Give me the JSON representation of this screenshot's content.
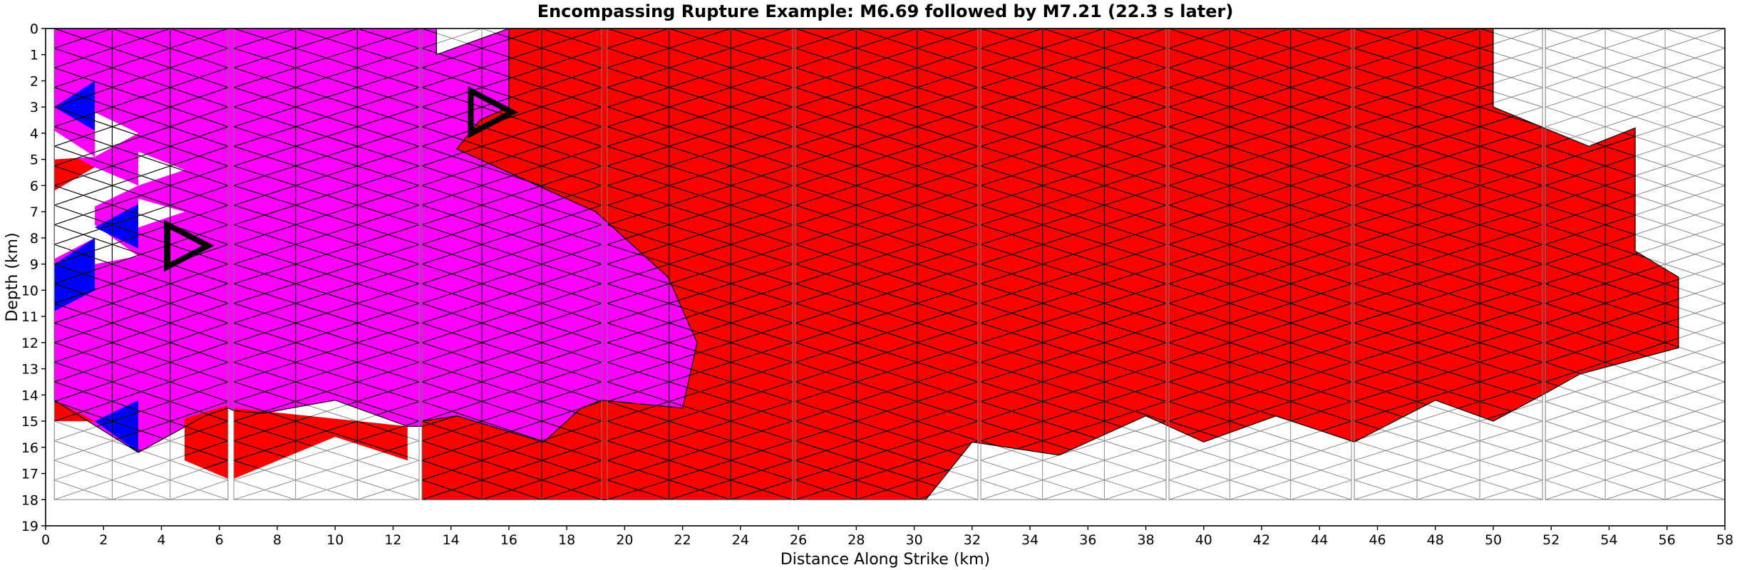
{
  "chart_data": {
    "type": "heatmap",
    "title": "Encompassing Rupture Example: M6.69 followed by M7.21 (22.3 s later)",
    "xlabel": "Distance Along Strike (km)",
    "ylabel": "Depth (km)",
    "xlim": [
      0,
      58
    ],
    "ylim": [
      19,
      0
    ],
    "x_ticks": [
      0,
      2,
      4,
      6,
      8,
      10,
      12,
      14,
      16,
      18,
      20,
      22,
      24,
      26,
      28,
      30,
      32,
      34,
      36,
      38,
      40,
      42,
      44,
      46,
      48,
      50,
      52,
      54,
      56,
      58
    ],
    "y_ticks": [
      0,
      1,
      2,
      3,
      4,
      5,
      6,
      7,
      8,
      9,
      10,
      11,
      12,
      13,
      14,
      15,
      16,
      17,
      18,
      19
    ],
    "grid": false,
    "colors": {
      "unruptured": "#ffffff",
      "first_event": "#ff00ff",
      "second_event": "#ff0000",
      "other": "#0000ff",
      "element_edge": "#000000",
      "unruptured_edge": "#888888"
    },
    "fault_sections": [
      {
        "x_start": 0.3,
        "x_end": 6.3
      },
      {
        "x_start": 6.5,
        "x_end": 12.9
      },
      {
        "x_start": 13.0,
        "x_end": 19.2
      },
      {
        "x_start": 19.4,
        "x_end": 25.8
      },
      {
        "x_start": 25.9,
        "x_end": 32.2
      },
      {
        "x_start": 32.3,
        "x_end": 38.7
      },
      {
        "x_start": 38.8,
        "x_end": 45.1
      },
      {
        "x_start": 45.2,
        "x_end": 51.7
      },
      {
        "x_start": 51.8,
        "x_end": 58.0
      }
    ],
    "depth_range": [
      0,
      18
    ],
    "first_event_region": [
      [
        0.3,
        0
      ],
      [
        13.5,
        0
      ],
      [
        13.5,
        1
      ],
      [
        16.0,
        0
      ],
      [
        16.0,
        3.0
      ],
      [
        15.0,
        3.5
      ],
      [
        14.2,
        4.6
      ],
      [
        19.0,
        7.0
      ],
      [
        21.5,
        9.5
      ],
      [
        22.5,
        12.0
      ],
      [
        22.0,
        14.5
      ],
      [
        19.2,
        14.2
      ],
      [
        18.5,
        14.5
      ],
      [
        17.2,
        15.8
      ],
      [
        14.2,
        14.8
      ],
      [
        13.0,
        15.2
      ],
      [
        12.5,
        15.2
      ],
      [
        10.0,
        14.2
      ],
      [
        7.5,
        14.7
      ],
      [
        6.5,
        14.6
      ],
      [
        6.3,
        14.5
      ],
      [
        5.5,
        14.8
      ],
      [
        3.2,
        16.2
      ],
      [
        0.3,
        14.2
      ]
    ],
    "second_event_region": [
      [
        16.0,
        0
      ],
      [
        50.0,
        0
      ],
      [
        50.0,
        3.0
      ],
      [
        53.3,
        4.5
      ],
      [
        54.9,
        3.8
      ],
      [
        54.9,
        8.5
      ],
      [
        56.4,
        9.5
      ],
      [
        56.4,
        12.2
      ],
      [
        53.0,
        13.2
      ],
      [
        51.7,
        14.0
      ],
      [
        50.0,
        15.0
      ],
      [
        48.0,
        14.2
      ],
      [
        45.2,
        15.8
      ],
      [
        42.5,
        14.8
      ],
      [
        40.0,
        15.8
      ],
      [
        38.0,
        14.8
      ],
      [
        35.0,
        16.3
      ],
      [
        32.0,
        15.8
      ],
      [
        30.4,
        18
      ],
      [
        13.0,
        18
      ],
      [
        13.0,
        15.0
      ],
      [
        14.2,
        14.8
      ],
      [
        17.2,
        15.8
      ],
      [
        18.5,
        14.5
      ],
      [
        19.2,
        14.2
      ],
      [
        22.0,
        14.5
      ],
      [
        22.5,
        12.0
      ],
      [
        21.5,
        9.5
      ],
      [
        19.0,
        7.0
      ],
      [
        14.2,
        4.6
      ],
      [
        15.0,
        3.5
      ],
      [
        16.0,
        3.0
      ]
    ],
    "extra_patches": [
      {
        "event": "second_event",
        "points": [
          [
            6.5,
            14.5
          ],
          [
            12.5,
            15.2
          ],
          [
            12.5,
            16.5
          ],
          [
            10.0,
            15.6
          ],
          [
            6.5,
            17.2
          ]
        ]
      },
      {
        "event": "second_event",
        "points": [
          [
            4.8,
            14.9
          ],
          [
            6.3,
            14.4
          ],
          [
            6.3,
            17.2
          ],
          [
            4.8,
            16.5
          ]
        ]
      },
      {
        "event": "second_event",
        "points": [
          [
            0.3,
            4.5
          ],
          [
            1.7,
            5.3
          ],
          [
            0.3,
            6.2
          ]
        ]
      },
      {
        "event": "second_event",
        "points": [
          [
            0.3,
            14.2
          ],
          [
            1.7,
            15.0
          ],
          [
            0.3,
            15.0
          ]
        ]
      },
      {
        "event": "unruptured",
        "points": [
          [
            1.7,
            3.2
          ],
          [
            3.2,
            4.0
          ],
          [
            1.7,
            4.9
          ]
        ]
      },
      {
        "event": "unruptured",
        "points": [
          [
            3.2,
            4.7
          ],
          [
            4.8,
            5.4
          ],
          [
            3.2,
            6.0
          ]
        ]
      },
      {
        "event": "unruptured",
        "points": [
          [
            1.7,
            5.3
          ],
          [
            3.2,
            6.0
          ],
          [
            1.7,
            6.8
          ]
        ]
      },
      {
        "event": "unruptured",
        "points": [
          [
            3.2,
            6.5
          ],
          [
            4.8,
            7.0
          ],
          [
            3.2,
            7.6
          ]
        ]
      },
      {
        "event": "unruptured",
        "points": [
          [
            0.3,
            6.2
          ],
          [
            1.7,
            5.3
          ],
          [
            1.7,
            8.0
          ],
          [
            0.3,
            8.8
          ]
        ]
      },
      {
        "event": "unruptured",
        "points": [
          [
            1.7,
            7.5
          ],
          [
            3.2,
            8.7
          ],
          [
            1.7,
            9.0
          ]
        ]
      },
      {
        "event": "unruptured",
        "points": [
          [
            0.3,
            3.9
          ],
          [
            1.7,
            4.9
          ],
          [
            0.3,
            5.0
          ]
        ]
      }
    ],
    "other_patches": [
      {
        "points": [
          [
            0.3,
            3.0
          ],
          [
            1.7,
            2.0
          ],
          [
            1.7,
            3.9
          ]
        ]
      },
      {
        "points": [
          [
            1.7,
            7.6
          ],
          [
            3.2,
            6.7
          ],
          [
            3.2,
            8.4
          ]
        ]
      },
      {
        "points": [
          [
            0.3,
            9.0
          ],
          [
            1.7,
            8.0
          ],
          [
            1.7,
            10.0
          ],
          [
            0.3,
            10.8
          ]
        ]
      },
      {
        "points": [
          [
            1.7,
            15.0
          ],
          [
            3.2,
            14.2
          ],
          [
            3.2,
            16.2
          ]
        ]
      }
    ],
    "hypocenters": [
      {
        "event": "first_event",
        "x": 4.9,
        "y": 8.3
      },
      {
        "event": "second_event",
        "x": 15.4,
        "y": 3.2
      }
    ]
  }
}
